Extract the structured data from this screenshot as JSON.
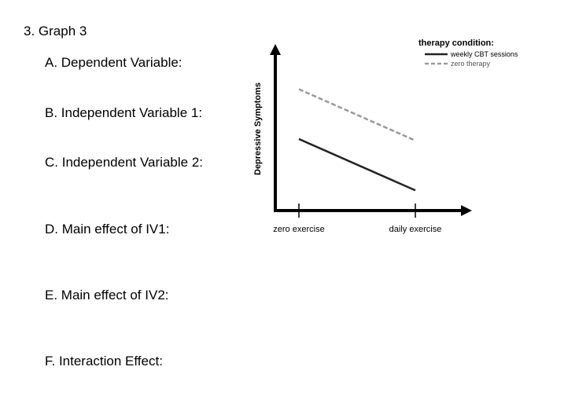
{
  "question": {
    "title": "3.  Graph 3",
    "items": [
      "A.  Dependent Variable:",
      "B.  Independent Variable 1:",
      "C.  Independent Variable 2:",
      "D.  Main effect of IV1:",
      "E.  Main effect of IV2:",
      "F.  Interaction Effect:"
    ]
  },
  "chart_data": {
    "type": "line",
    "title": "",
    "xlabel": "",
    "ylabel": "Depressive Symptoms",
    "categories": [
      "zero exercise",
      "daily exercise"
    ],
    "ylim": [
      0,
      10
    ],
    "legend": {
      "title": "therapy condition:",
      "position": "top-right"
    },
    "series": [
      {
        "name": "weekly CBT sessions",
        "values": [
          4.6,
          1.3
        ],
        "color": "#222222",
        "style": "solid"
      },
      {
        "name": "zero therapy",
        "values": [
          7.8,
          4.5
        ],
        "color": "#999999",
        "style": "dashed"
      }
    ],
    "grid": false
  }
}
